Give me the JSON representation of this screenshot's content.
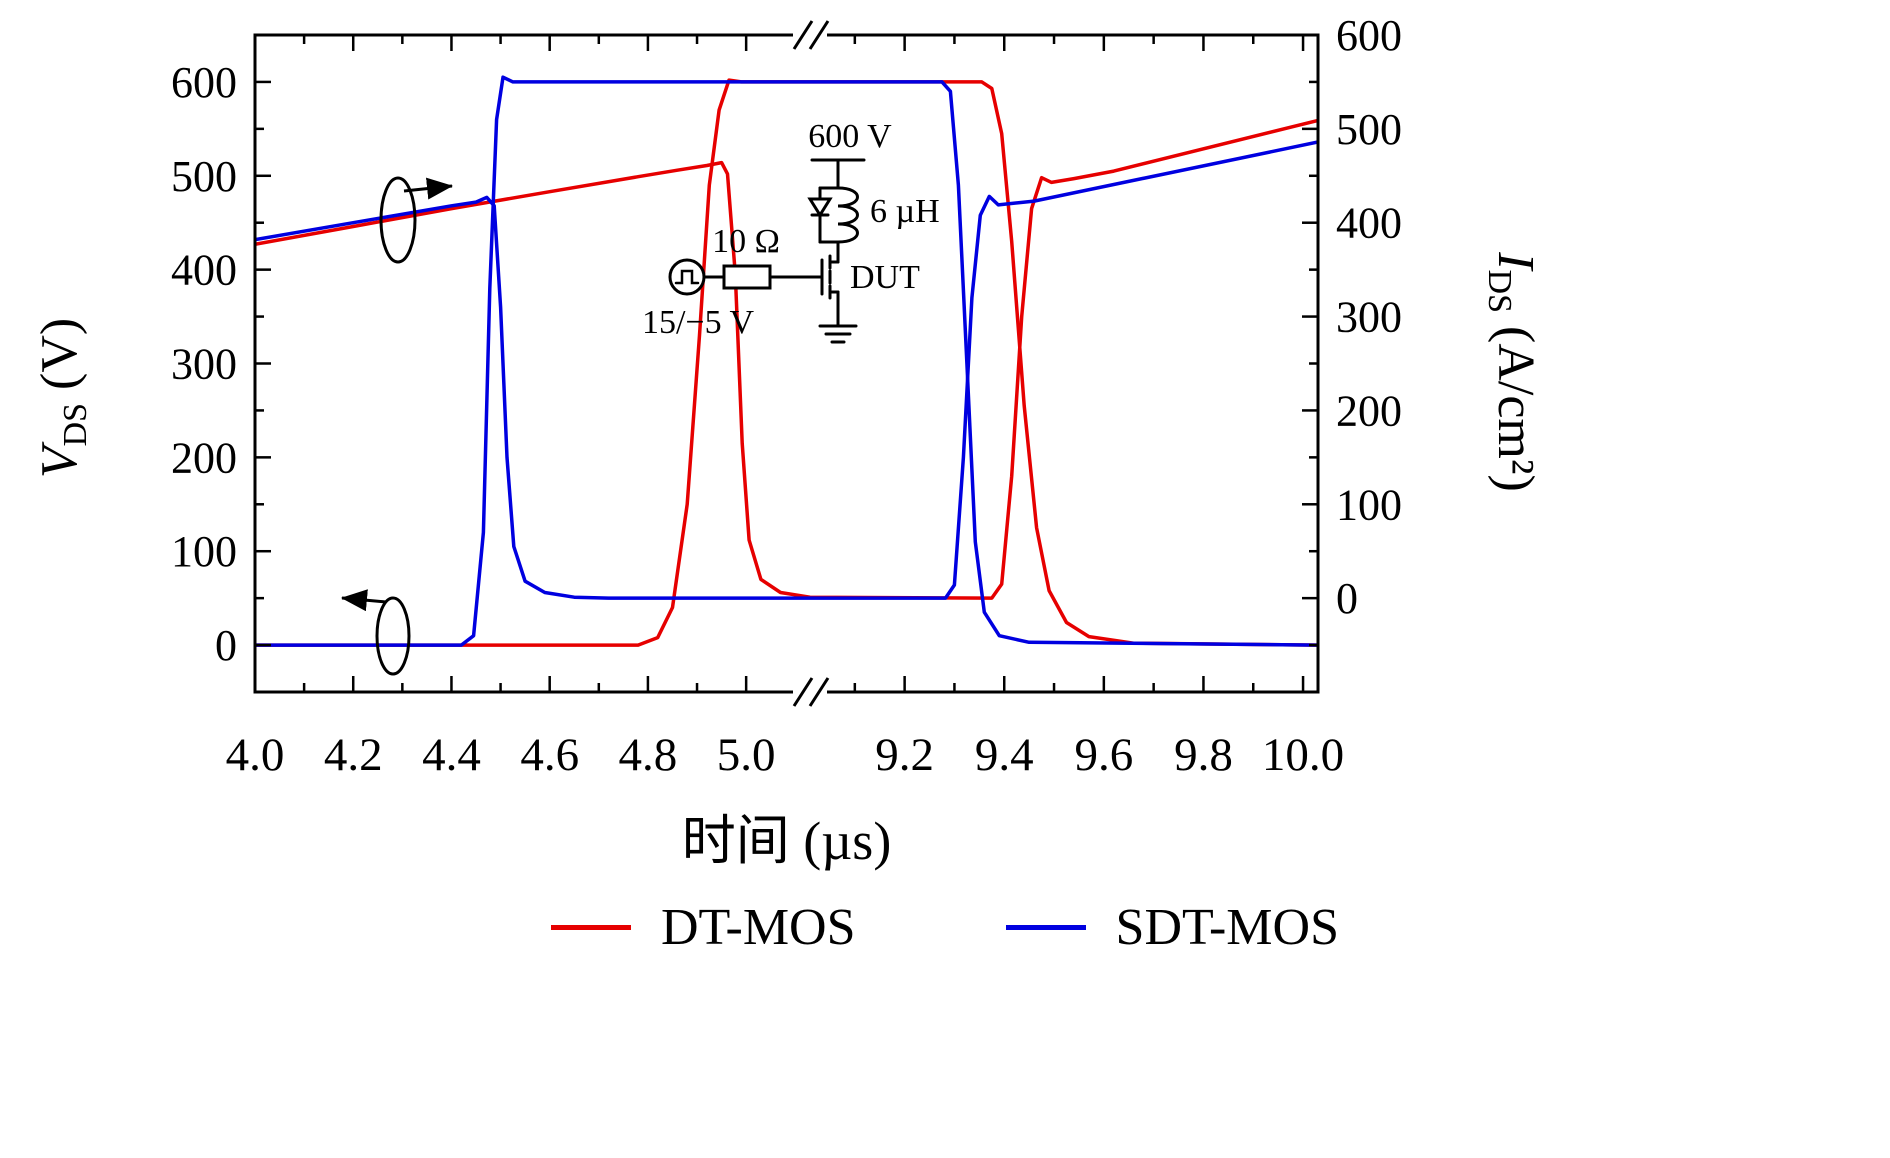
{
  "chart_data": {
    "type": "line",
    "title": "",
    "xlabel": "时间 (µs)",
    "ylabel_left": {
      "symbol": "V",
      "subscript": "DS",
      "unit": " (V)"
    },
    "ylabel_right": {
      "symbol": "I",
      "subscript": "DS",
      "unit": " (A/cm²)"
    },
    "x_axis": {
      "broken": true,
      "unit": "µs",
      "segments": [
        {
          "min": 4.0,
          "max": 5.13
        },
        {
          "min": 9.01,
          "max": 10.03
        }
      ],
      "major_ticks": [
        {
          "v": 4.0,
          "label": "4.0"
        },
        {
          "v": 4.2,
          "label": "4.2"
        },
        {
          "v": 4.4,
          "label": "4.4"
        },
        {
          "v": 4.6,
          "label": "4.6"
        },
        {
          "v": 4.8,
          "label": "4.8"
        },
        {
          "v": 5.0,
          "label": "5.0"
        },
        {
          "v": 9.2,
          "label": "9.2"
        },
        {
          "v": 9.4,
          "label": "9.4"
        },
        {
          "v": 9.6,
          "label": "9.6"
        },
        {
          "v": 9.8,
          "label": "9.8"
        },
        {
          "v": 10.0,
          "label": "10.0"
        }
      ],
      "minor_step": 0.1
    },
    "y_left": {
      "min": -50,
      "max": 650,
      "major_ticks": [
        0,
        100,
        200,
        300,
        400,
        500,
        600
      ],
      "minor_step": 50
    },
    "y_right": {
      "min": -100,
      "max": 600,
      "major_ticks": [
        0,
        100,
        200,
        300,
        400,
        500,
        600
      ],
      "minor_step": 50
    },
    "series": [
      {
        "name": "DT-MOS",
        "color": "#e60000",
        "traces": [
          {
            "quantity": "VDS",
            "axis": "left",
            "points": [
              [
                4.0,
                0
              ],
              [
                4.78,
                0
              ],
              [
                4.82,
                8
              ],
              [
                4.85,
                40
              ],
              [
                4.88,
                150
              ],
              [
                4.905,
                330
              ],
              [
                4.925,
                490
              ],
              [
                4.945,
                570
              ],
              [
                4.965,
                602
              ],
              [
                4.99,
                600
              ],
              [
                9.355,
                600
              ],
              [
                9.375,
                593
              ],
              [
                9.395,
                545
              ],
              [
                9.415,
                430
              ],
              [
                9.44,
                255
              ],
              [
                9.465,
                125
              ],
              [
                9.49,
                58
              ],
              [
                9.525,
                24
              ],
              [
                9.57,
                9
              ],
              [
                9.66,
                2
              ],
              [
                10.03,
                0
              ]
            ]
          },
          {
            "quantity": "IDS",
            "axis": "right",
            "points": [
              [
                4.0,
                377
              ],
              [
                4.2,
                396
              ],
              [
                4.4,
                415
              ],
              [
                4.6,
                433
              ],
              [
                4.78,
                449
              ],
              [
                4.86,
                456
              ],
              [
                4.92,
                461
              ],
              [
                4.95,
                464
              ],
              [
                4.962,
                452
              ],
              [
                4.978,
                345
              ],
              [
                4.992,
                165
              ],
              [
                5.006,
                62
              ],
              [
                5.03,
                20
              ],
              [
                5.07,
                6
              ],
              [
                5.13,
                1
              ],
              [
                9.375,
                0
              ],
              [
                9.395,
                15
              ],
              [
                9.415,
                130
              ],
              [
                9.435,
                300
              ],
              [
                9.455,
                415
              ],
              [
                9.475,
                448
              ],
              [
                9.495,
                443
              ],
              [
                9.54,
                447
              ],
              [
                9.62,
                455
              ],
              [
                10.03,
                509
              ]
            ]
          }
        ]
      },
      {
        "name": "SDT-MOS",
        "color": "#0000e0",
        "traces": [
          {
            "quantity": "VDS",
            "axis": "left",
            "points": [
              [
                4.0,
                0
              ],
              [
                4.42,
                0
              ],
              [
                4.445,
                10
              ],
              [
                4.465,
                120
              ],
              [
                4.478,
                380
              ],
              [
                4.492,
                560
              ],
              [
                4.505,
                605
              ],
              [
                4.525,
                600
              ],
              [
                9.275,
                600
              ],
              [
                9.292,
                590
              ],
              [
                9.308,
                490
              ],
              [
                9.325,
                300
              ],
              [
                9.342,
                110
              ],
              [
                9.36,
                35
              ],
              [
                9.39,
                10
              ],
              [
                9.45,
                3
              ],
              [
                10.03,
                0
              ]
            ]
          },
          {
            "quantity": "IDS",
            "axis": "right",
            "points": [
              [
                4.0,
                382
              ],
              [
                4.2,
                400
              ],
              [
                4.4,
                418
              ],
              [
                4.45,
                422
              ],
              [
                4.472,
                427
              ],
              [
                4.487,
                418
              ],
              [
                4.5,
                310
              ],
              [
                4.513,
                150
              ],
              [
                4.527,
                55
              ],
              [
                4.55,
                18
              ],
              [
                4.59,
                6
              ],
              [
                4.65,
                1
              ],
              [
                4.72,
                0
              ],
              [
                9.282,
                0
              ],
              [
                9.3,
                14
              ],
              [
                9.318,
                150
              ],
              [
                9.335,
                320
              ],
              [
                9.352,
                408
              ],
              [
                9.37,
                428
              ],
              [
                9.388,
                419
              ],
              [
                9.46,
                423
              ],
              [
                10.03,
                486
              ]
            ]
          }
        ]
      }
    ],
    "legend": {
      "position": "bottom",
      "entries": [
        "DT-MOS",
        "SDT-MOS"
      ]
    }
  },
  "circuit": {
    "supply_label": "600 V",
    "inductor_label": "6 µH",
    "dut_label": "DUT",
    "resistor_label": "10 Ω",
    "gate_drive_label": "15/−5 V"
  }
}
